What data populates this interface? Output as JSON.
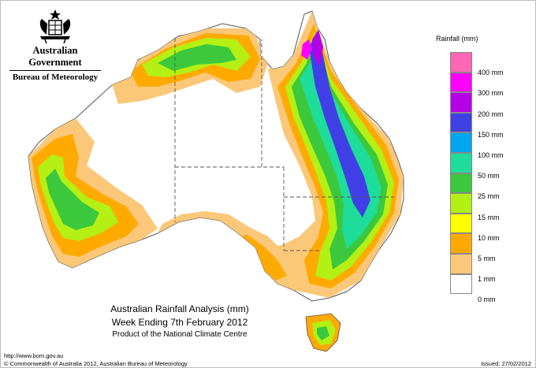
{
  "header": {
    "government": "Australian Government",
    "bureau": "Bureau of Meteorology"
  },
  "map": {
    "title_line1": "Australian Rainfall Analysis (mm)",
    "title_line2": "Week Ending 7th February 2012",
    "title_line3": "Product of the National Climate Centre"
  },
  "legend": {
    "title": "Rainfall (mm)",
    "bins": [
      {
        "label": "",
        "color": "#ff66b3"
      },
      {
        "label": "400 mm",
        "color": "#ff00ff"
      },
      {
        "label": "300 mm",
        "color": "#b400e6"
      },
      {
        "label": "200 mm",
        "color": "#4040e6"
      },
      {
        "label": "150 mm",
        "color": "#00a6f0"
      },
      {
        "label": "100 mm",
        "color": "#1edc9a"
      },
      {
        "label": "50 mm",
        "color": "#3cc83c"
      },
      {
        "label": "25 mm",
        "color": "#b4f014"
      },
      {
        "label": "15 mm",
        "color": "#ffff00"
      },
      {
        "label": "10 mm",
        "color": "#ffaa00"
      },
      {
        "label": "5 mm",
        "color": "#fac878"
      },
      {
        "label": "1 mm",
        "color": "#ffffff"
      },
      {
        "label": "0 mm",
        "color": ""
      }
    ]
  },
  "footer": {
    "url": "http://www.bom.gov.au",
    "copyright": "© Commonwealth of Australia 2012, Australian Bureau of Meteorology",
    "issued": "Issued: 27/02/2012"
  }
}
